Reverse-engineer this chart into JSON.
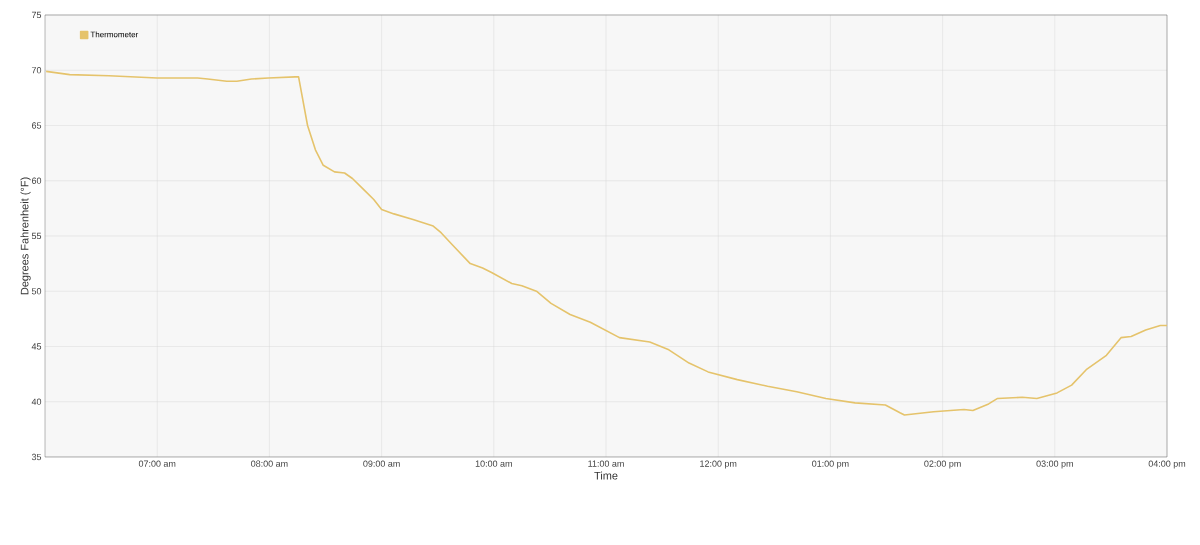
{
  "chart_data": {
    "type": "line",
    "xlabel": "Time",
    "ylabel": "Degrees Fahrenheit (°F)",
    "xlim": [
      6,
      16
    ],
    "ylim": [
      35,
      75
    ],
    "xticks": [
      {
        "value": 7,
        "label": "07:00 am"
      },
      {
        "value": 8,
        "label": "08:00 am"
      },
      {
        "value": 9,
        "label": "09:00 am"
      },
      {
        "value": 10,
        "label": "10:00 am"
      },
      {
        "value": 11,
        "label": "11:00 am"
      },
      {
        "value": 12,
        "label": "12:00 pm"
      },
      {
        "value": 13,
        "label": "01:00 pm"
      },
      {
        "value": 14,
        "label": "02:00 pm"
      },
      {
        "value": 15,
        "label": "03:00 pm"
      },
      {
        "value": 16,
        "label": "04:00 pm"
      }
    ],
    "yticks": [
      35,
      40,
      45,
      50,
      55,
      60,
      65,
      70,
      75
    ],
    "grid": true,
    "legend": "top left",
    "marker": "none",
    "line_style": "solid",
    "series": [
      {
        "name": "Thermometer",
        "color": "#e5c36b",
        "x": [
          6.01,
          6.22,
          6.57,
          7.0,
          7.36,
          7.45,
          7.62,
          7.71,
          7.84,
          7.99,
          8.23,
          8.26,
          8.34,
          8.41,
          8.48,
          8.58,
          8.67,
          8.74,
          8.85,
          8.93,
          9.0,
          9.11,
          9.28,
          9.46,
          9.53,
          9.63,
          9.79,
          9.9,
          9.98,
          10.16,
          10.25,
          10.38,
          10.51,
          10.68,
          10.86,
          10.99,
          11.12,
          11.39,
          11.56,
          11.74,
          11.91,
          12.17,
          12.44,
          12.7,
          12.96,
          13.22,
          13.49,
          13.62,
          13.66,
          13.92,
          14.19,
          14.27,
          14.41,
          14.49,
          14.71,
          14.84,
          15.02,
          15.15,
          15.28,
          15.46,
          15.59,
          15.68,
          15.81,
          15.94,
          16.0
        ],
        "values": [
          69.9,
          69.6,
          69.5,
          69.3,
          69.3,
          69.2,
          69.0,
          69.0,
          69.2,
          69.3,
          69.4,
          69.4,
          65.0,
          62.8,
          61.4,
          60.8,
          60.7,
          60.2,
          59.1,
          58.3,
          57.4,
          57.0,
          56.5,
          55.9,
          55.3,
          54.2,
          52.5,
          52.1,
          51.7,
          50.7,
          50.5,
          50.0,
          48.9,
          47.9,
          47.2,
          46.5,
          45.8,
          45.4,
          44.7,
          43.5,
          42.7,
          42.0,
          41.4,
          40.9,
          40.3,
          39.9,
          39.7,
          39.0,
          38.8,
          39.1,
          39.3,
          39.2,
          39.8,
          40.3,
          40.4,
          40.3,
          40.8,
          41.5,
          42.9,
          44.2,
          45.8,
          45.9,
          46.5,
          46.9,
          46.9
        ]
      }
    ]
  }
}
